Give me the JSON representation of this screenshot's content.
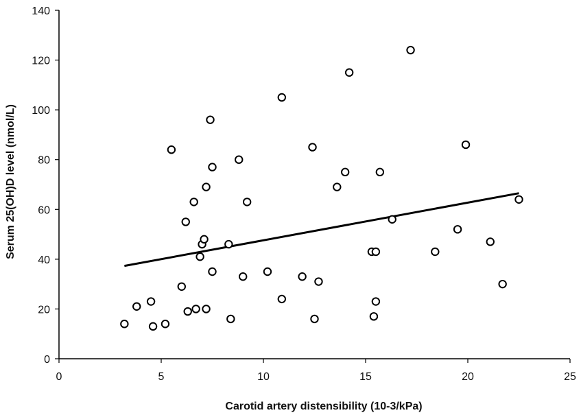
{
  "chart_data": {
    "type": "scatter",
    "title": "",
    "xlabel": "Carotid artery distensibility  (10-3/kPa)",
    "ylabel": "Serum 25(OH)D level (nmol/L)",
    "xlim": [
      0,
      25
    ],
    "ylim": [
      0,
      140
    ],
    "x_ticks": [
      0,
      5,
      10,
      15,
      20,
      25
    ],
    "y_ticks": [
      0,
      20,
      40,
      60,
      80,
      100,
      120,
      140
    ],
    "grid": false,
    "legend": "none",
    "marker": "open-circle",
    "colors": {
      "marker": "#000000",
      "trend": "#000000",
      "axis": "#000000"
    },
    "points": [
      {
        "x": 3.2,
        "y": 14
      },
      {
        "x": 3.8,
        "y": 21
      },
      {
        "x": 4.5,
        "y": 23
      },
      {
        "x": 4.6,
        "y": 13
      },
      {
        "x": 5.2,
        "y": 14
      },
      {
        "x": 5.5,
        "y": 84
      },
      {
        "x": 6.0,
        "y": 29
      },
      {
        "x": 6.2,
        "y": 55
      },
      {
        "x": 6.3,
        "y": 19
      },
      {
        "x": 6.6,
        "y": 63
      },
      {
        "x": 6.7,
        "y": 20
      },
      {
        "x": 6.9,
        "y": 41
      },
      {
        "x": 7.0,
        "y": 46
      },
      {
        "x": 7.1,
        "y": 48
      },
      {
        "x": 7.2,
        "y": 69
      },
      {
        "x": 7.2,
        "y": 20
      },
      {
        "x": 7.4,
        "y": 96
      },
      {
        "x": 7.5,
        "y": 35
      },
      {
        "x": 7.5,
        "y": 77
      },
      {
        "x": 8.3,
        "y": 46
      },
      {
        "x": 8.4,
        "y": 16
      },
      {
        "x": 8.8,
        "y": 80
      },
      {
        "x": 9.0,
        "y": 33
      },
      {
        "x": 9.2,
        "y": 63
      },
      {
        "x": 10.2,
        "y": 35
      },
      {
        "x": 10.9,
        "y": 105
      },
      {
        "x": 10.9,
        "y": 24
      },
      {
        "x": 11.9,
        "y": 33
      },
      {
        "x": 12.4,
        "y": 85
      },
      {
        "x": 12.5,
        "y": 16
      },
      {
        "x": 12.7,
        "y": 31
      },
      {
        "x": 13.6,
        "y": 69
      },
      {
        "x": 14.0,
        "y": 75
      },
      {
        "x": 14.2,
        "y": 115
      },
      {
        "x": 15.3,
        "y": 43
      },
      {
        "x": 15.4,
        "y": 17
      },
      {
        "x": 15.5,
        "y": 43
      },
      {
        "x": 15.5,
        "y": 23
      },
      {
        "x": 15.7,
        "y": 75
      },
      {
        "x": 16.3,
        "y": 56
      },
      {
        "x": 17.2,
        "y": 124
      },
      {
        "x": 18.4,
        "y": 43
      },
      {
        "x": 19.5,
        "y": 52
      },
      {
        "x": 19.9,
        "y": 86
      },
      {
        "x": 21.1,
        "y": 47
      },
      {
        "x": 21.7,
        "y": 30
      },
      {
        "x": 22.5,
        "y": 64
      }
    ],
    "trendline": {
      "x": [
        3.2,
        22.5
      ],
      "y": [
        37.3,
        66.5
      ]
    }
  }
}
